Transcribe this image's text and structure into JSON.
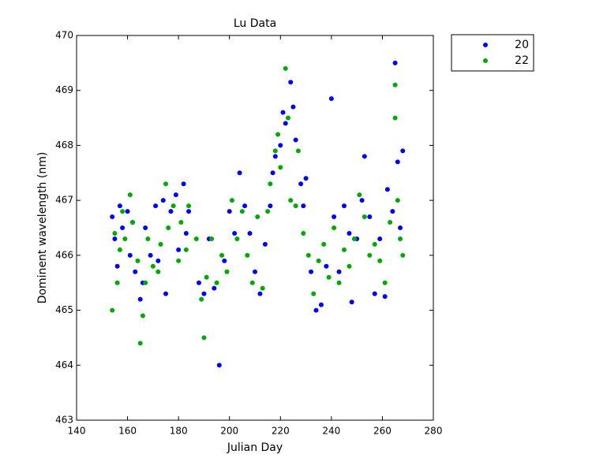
{
  "chart_data": {
    "type": "scatter",
    "title": "Lu Data",
    "x_label": "Julian Day",
    "y_label": "Dominent wavelength (nm)",
    "xlim": [
      140,
      280
    ],
    "xticks": [
      140,
      160,
      180,
      200,
      220,
      240,
      260,
      280
    ],
    "ylim": [
      463,
      470
    ],
    "yticks": [
      463,
      464,
      465,
      466,
      467,
      468,
      469,
      470
    ],
    "grid": false,
    "legend": "outside-top-right",
    "series": [
      {
        "name": "20",
        "color": "#0000ff",
        "x": [
          154,
          155,
          156,
          157,
          158,
          160,
          161,
          162,
          163,
          165,
          166,
          167,
          169,
          171,
          172,
          174,
          175,
          177,
          179,
          180,
          182,
          183,
          184,
          188,
          190,
          192,
          194,
          196,
          198,
          200,
          202,
          204,
          206,
          208,
          210,
          212,
          214,
          216,
          217,
          218,
          220,
          221,
          222,
          224,
          225,
          226,
          228,
          229,
          230,
          232,
          234,
          236,
          238,
          240,
          241,
          243,
          245,
          247,
          248,
          250,
          252,
          253,
          255,
          257,
          259,
          261,
          262,
          264,
          265,
          266,
          267,
          268
        ],
        "values": [
          466.7,
          466.3,
          465.8,
          466.9,
          466.5,
          466.8,
          466.0,
          466.6,
          465.7,
          465.2,
          465.5,
          466.5,
          466.0,
          466.9,
          465.9,
          467.0,
          465.3,
          466.8,
          467.1,
          466.1,
          467.3,
          466.4,
          466.8,
          465.5,
          465.3,
          466.3,
          465.4,
          464.0,
          465.9,
          466.8,
          466.4,
          467.5,
          466.9,
          466.4,
          465.7,
          465.3,
          466.2,
          466.9,
          467.5,
          467.8,
          468.0,
          468.6,
          468.4,
          469.15,
          468.7,
          468.1,
          467.3,
          466.9,
          467.4,
          465.7,
          465.0,
          465.1,
          465.8,
          468.85,
          466.7,
          465.7,
          466.9,
          466.4,
          465.15,
          466.3,
          467.0,
          467.8,
          466.7,
          465.3,
          466.3,
          465.25,
          467.2,
          466.8,
          469.5,
          467.7,
          466.5,
          467.9
        ]
      },
      {
        "name": "22",
        "color": "#00aa00",
        "x": [
          154,
          155,
          156,
          157,
          158,
          159,
          161,
          162,
          164,
          165,
          166,
          167,
          168,
          170,
          172,
          173,
          175,
          176,
          178,
          180,
          181,
          183,
          184,
          187,
          189,
          190,
          191,
          193,
          195,
          197,
          199,
          201,
          203,
          205,
          207,
          209,
          211,
          213,
          215,
          216,
          218,
          219,
          220,
          222,
          223,
          224,
          226,
          227,
          229,
          231,
          233,
          235,
          237,
          239,
          241,
          243,
          245,
          247,
          249,
          251,
          253,
          255,
          257,
          259,
          261,
          263,
          265,
          265,
          266,
          267,
          268
        ],
        "values": [
          465.0,
          466.4,
          465.5,
          466.1,
          466.8,
          466.3,
          467.1,
          466.6,
          465.9,
          464.4,
          464.9,
          465.5,
          466.3,
          465.8,
          465.7,
          466.2,
          467.3,
          466.5,
          466.9,
          465.9,
          466.6,
          466.1,
          466.9,
          466.3,
          465.2,
          464.5,
          465.6,
          466.3,
          465.5,
          466.0,
          465.7,
          467.0,
          466.3,
          466.8,
          466.0,
          465.5,
          466.7,
          465.4,
          466.8,
          467.3,
          467.9,
          468.2,
          467.6,
          469.4,
          468.5,
          467.0,
          466.9,
          467.9,
          466.4,
          466.0,
          465.3,
          465.9,
          466.2,
          465.6,
          466.5,
          465.5,
          466.1,
          465.8,
          466.3,
          467.1,
          466.7,
          466.0,
          466.2,
          465.9,
          465.5,
          466.6,
          469.1,
          468.5,
          467.0,
          466.3,
          466.0
        ]
      }
    ]
  }
}
